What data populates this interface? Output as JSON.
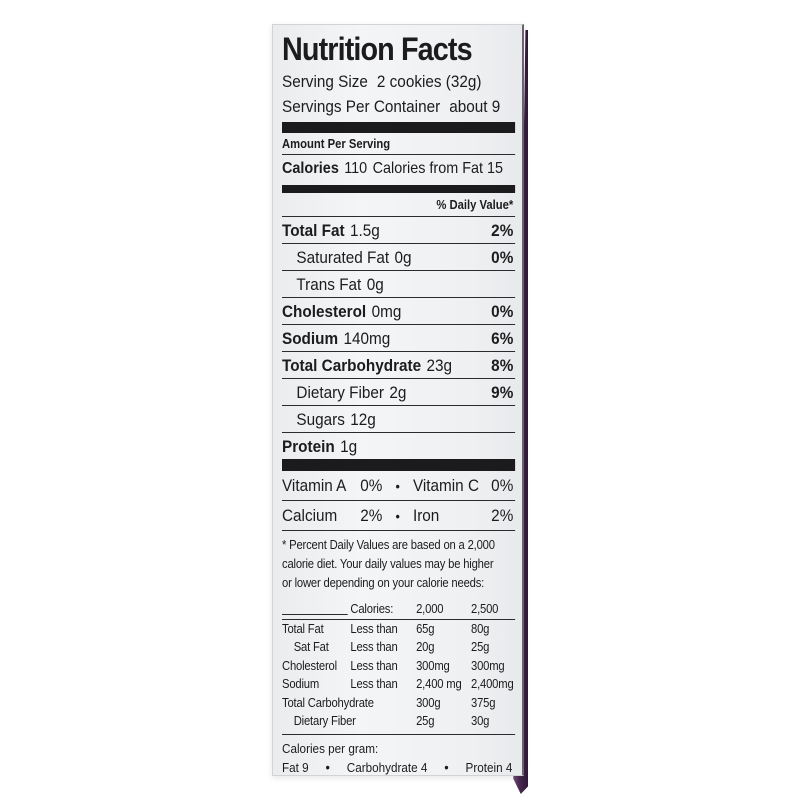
{
  "colors": {
    "ink": "#1c1c1e",
    "label-bg": "#f2f3f5",
    "purple": "#44264c"
  },
  "nf": {
    "title": "Nutrition Facts",
    "serving_size_label": "Serving Size",
    "serving_size_value": "2 cookies (32g)",
    "servings_label": "Servings Per Container",
    "servings_value": "about 9",
    "amount_per_serving": "Amount Per Serving",
    "calories_label": "Calories",
    "calories_value": "110",
    "calories_from_fat": "Calories from Fat 15",
    "daily_value_header": "% Daily Value*",
    "bullet": "•",
    "nutrients": [
      {
        "name": "Total Fat",
        "amount": "1.5g",
        "dv": "2%"
      },
      {
        "name": "Saturated Fat",
        "amount": "0g",
        "dv": "0%"
      },
      {
        "name": "Trans Fat",
        "amount": "0g",
        "dv": ""
      },
      {
        "name": "Cholesterol",
        "amount": "0mg",
        "dv": "0%"
      },
      {
        "name": "Sodium",
        "amount": "140mg",
        "dv": "6%"
      },
      {
        "name": "Total Carbohydrate",
        "amount": "23g",
        "dv": "8%"
      },
      {
        "name": "Dietary Fiber",
        "amount": "2g",
        "dv": "9%"
      },
      {
        "name": "Sugars",
        "amount": "12g",
        "dv": ""
      },
      {
        "name": "Protein",
        "amount": "1g",
        "dv": ""
      }
    ],
    "vitamins": [
      {
        "left": "Vitamin A",
        "left_value": "0%",
        "right": "Vitamin C",
        "right_value": "0%"
      },
      {
        "left": "Calcium",
        "left_value": "2%",
        "right": "Iron",
        "right_value": "2%"
      }
    ],
    "footnote_lines": [
      "* Percent Daily Values are based on a 2,000",
      "calorie diet. Your daily values may be higher",
      "or lower depending on your calorie needs:"
    ],
    "ref_table": {
      "header": {
        "c2": "Calories:",
        "c3": "2,000",
        "c4": "2,500"
      },
      "rows": [
        {
          "c1": "Total Fat",
          "c2": "Less than",
          "c3": "65g",
          "c4": "80g"
        },
        {
          "c1": "Sat Fat",
          "c2": "Less than",
          "c3": "20g",
          "c4": "25g"
        },
        {
          "c1": "Cholesterol",
          "c2": "Less than",
          "c3": "300mg",
          "c4": "300mg"
        },
        {
          "c1": "Sodium",
          "c2": "Less than",
          "c3": "2,400 mg",
          "c4": "2,400mg"
        },
        {
          "c1": "Total Carbohydrate",
          "c2": "",
          "c3": "300g",
          "c4": "375g"
        },
        {
          "c1": "Dietary Fiber",
          "c2": "",
          "c3": "25g",
          "c4": "30g"
        }
      ]
    },
    "calories_per_gram_label": "Calories per gram:",
    "calories_per_gram": [
      "Fat 9",
      "Carbohydrate 4",
      "Protein 4"
    ]
  }
}
